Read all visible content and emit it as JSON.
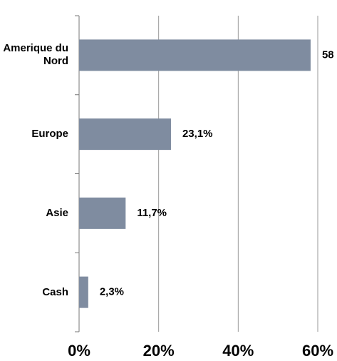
{
  "chart_data": {
    "type": "hbar",
    "categories": [
      "Amerique du Nord",
      "Europe",
      "Asie",
      "Cash"
    ],
    "values": [
      58.2,
      23.1,
      11.7,
      2.3
    ],
    "value_labels": [
      "58",
      "23,1%",
      "11,7%",
      "2,3%"
    ],
    "color": "#7f8ca0",
    "xlim": [
      0,
      60
    ],
    "xticks": [
      {
        "value": 0,
        "label": "0%"
      },
      {
        "value": 20,
        "label": "20%"
      },
      {
        "value": 40,
        "label": "40%"
      },
      {
        "value": 60,
        "label": "60%"
      }
    ],
    "grid": true
  }
}
